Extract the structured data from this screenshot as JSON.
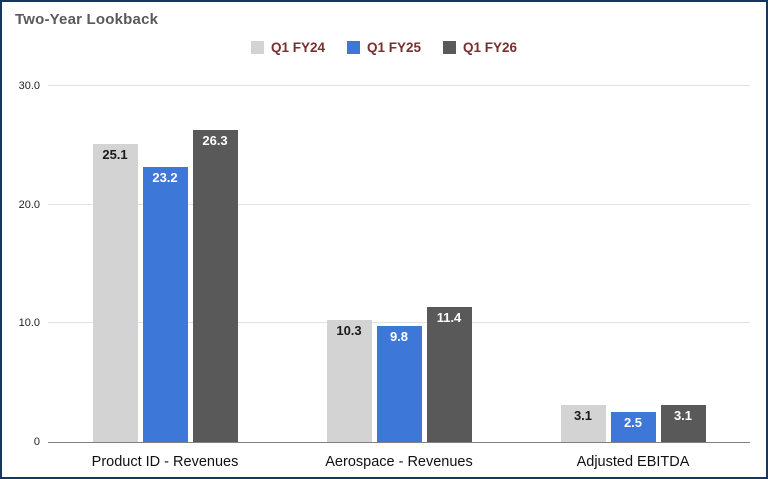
{
  "window": {
    "border_color": "#17365d",
    "background": "#ffffff"
  },
  "header": {
    "title_color": "#595959"
  },
  "legend": {
    "text_color": "#7b2d2d",
    "position": "top-center"
  },
  "chart_data": {
    "type": "bar",
    "title": "Two-Year Lookback",
    "categories": [
      "Product ID - Revenues",
      "Aerospace - Revenues",
      "Adjusted EBITDA"
    ],
    "series": [
      {
        "name": "Q1 FY24",
        "color": "#d3d3d3",
        "label_color": "#1a1a1a",
        "values": [
          25.1,
          10.3,
          3.1
        ]
      },
      {
        "name": "Q1 FY25",
        "color": "#3d78d8",
        "label_color": "#ffffff",
        "values": [
          23.2,
          9.8,
          2.5
        ]
      },
      {
        "name": "Q1 FY26",
        "color": "#595959",
        "label_color": "#ffffff",
        "values": [
          26.3,
          11.4,
          3.1
        ]
      }
    ],
    "xlabel": "",
    "ylabel": "",
    "ylim": [
      0,
      30
    ],
    "yticks": [
      {
        "value": 0,
        "label": "0"
      },
      {
        "value": 10,
        "label": "10.0"
      },
      {
        "value": 20,
        "label": "20.0"
      },
      {
        "value": 30,
        "label": "30.0"
      }
    ],
    "grid": true,
    "legend_position": "top",
    "data_labels": true
  }
}
